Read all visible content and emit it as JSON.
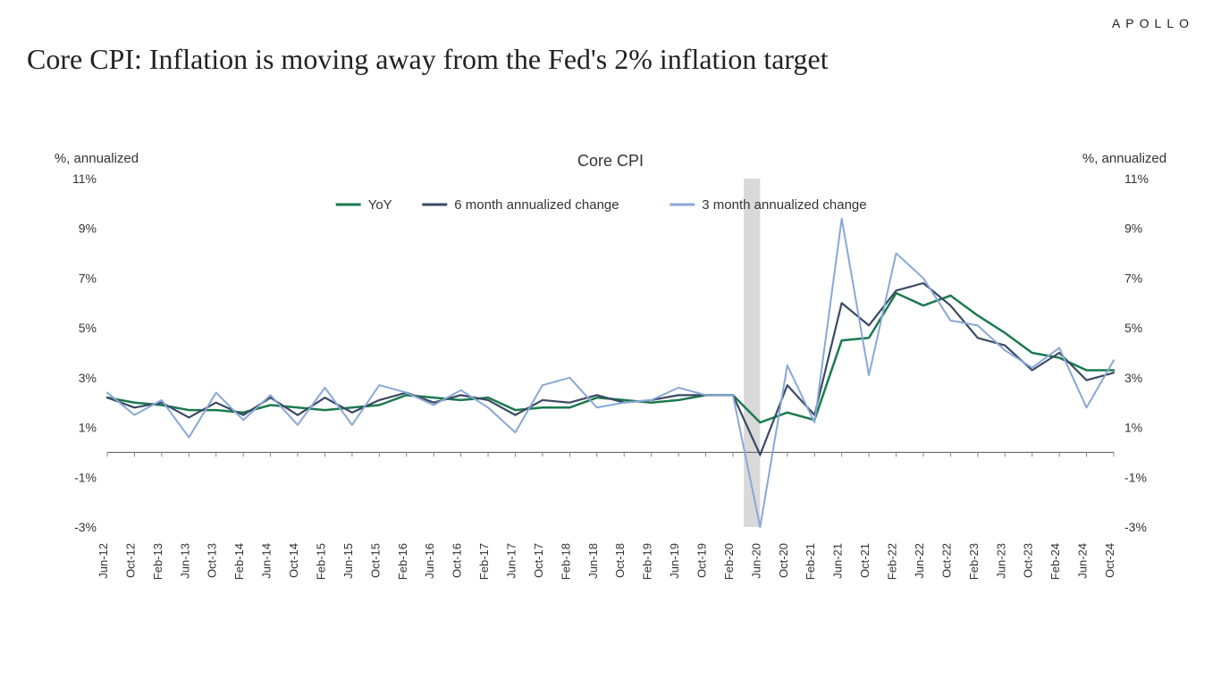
{
  "brand": "APOLLO",
  "title": "Core CPI: Inflation is moving away from the Fed's 2% inflation target",
  "chart": {
    "type": "line",
    "subtitle": "Core CPI",
    "y_axis_label": "%, annualized",
    "y_axis_label_left": "%, annualized",
    "y_axis_label_right": "%, annualized",
    "ylim": [
      -3,
      11
    ],
    "ytick_step": 2,
    "yticks": [
      -3,
      -1,
      1,
      3,
      5,
      7,
      9,
      11
    ],
    "ytick_labels": [
      "-3%",
      "-1%",
      "1%",
      "3%",
      "5%",
      "7%",
      "9%",
      "11%"
    ],
    "x_labels": [
      "Jun-12",
      "Oct-12",
      "Feb-13",
      "Jun-13",
      "Oct-13",
      "Feb-14",
      "Jun-14",
      "Oct-14",
      "Feb-15",
      "Jun-15",
      "Oct-15",
      "Feb-16",
      "Jun-16",
      "Oct-16",
      "Feb-17",
      "Jun-17",
      "Oct-17",
      "Feb-18",
      "Jun-18",
      "Oct-18",
      "Feb-19",
      "Jun-19",
      "Oct-19",
      "Feb-20",
      "Jun-20",
      "Oct-20",
      "Feb-21",
      "Jun-21",
      "Oct-21",
      "Feb-22",
      "Jun-22",
      "Oct-22",
      "Feb-23",
      "Jun-23",
      "Oct-23",
      "Feb-24",
      "Jun-24",
      "Oct-24"
    ],
    "recession_band": {
      "start_idx": 23.4,
      "end_idx": 24.0,
      "color": "#d9d9d9"
    },
    "legend": [
      {
        "label": "YoY",
        "color": "#1b7a4f"
      },
      {
        "label": "6 month annualized change",
        "color": "#3a4a63"
      },
      {
        "label": "3 month annualized change",
        "color": "#89a8d6"
      }
    ],
    "series": [
      {
        "name": "YoY",
        "color": "#1b7a4f",
        "width": 2.5,
        "values": [
          2.2,
          2.0,
          1.9,
          1.7,
          1.7,
          1.6,
          1.9,
          1.8,
          1.7,
          1.8,
          1.9,
          2.3,
          2.2,
          2.1,
          2.2,
          1.7,
          1.8,
          1.8,
          2.2,
          2.1,
          2.0,
          2.1,
          2.3,
          2.3,
          1.2,
          1.6,
          1.3,
          4.5,
          4.6,
          6.4,
          5.9,
          6.3,
          5.5,
          4.8,
          4.0,
          3.8,
          3.3,
          3.3
        ]
      },
      {
        "name": "6 month annualized change",
        "color": "#3a4a63",
        "width": 2.2,
        "values": [
          2.2,
          1.8,
          2.0,
          1.4,
          2.0,
          1.5,
          2.2,
          1.5,
          2.2,
          1.6,
          2.1,
          2.4,
          2.0,
          2.3,
          2.1,
          1.5,
          2.1,
          2.0,
          2.3,
          2.0,
          2.1,
          2.3,
          2.3,
          2.3,
          -0.1,
          2.7,
          1.5,
          6.0,
          5.1,
          6.5,
          6.8,
          5.9,
          4.6,
          4.3,
          3.3,
          4.0,
          2.9,
          3.2
        ]
      },
      {
        "name": "3 month annualized change",
        "color": "#89a8d6",
        "width": 2.0,
        "values": [
          2.4,
          1.5,
          2.1,
          0.6,
          2.4,
          1.3,
          2.3,
          1.1,
          2.6,
          1.1,
          2.7,
          2.4,
          1.9,
          2.5,
          1.8,
          0.8,
          2.7,
          3.0,
          1.8,
          2.0,
          2.1,
          2.6,
          2.3,
          2.3,
          -3.0,
          3.5,
          1.2,
          9.4,
          3.1,
          8.0,
          7.0,
          5.3,
          5.1,
          4.1,
          3.4,
          4.2,
          1.8,
          3.7
        ]
      }
    ],
    "subtitle_fontsize": 18,
    "axis_label_fontsize": 15,
    "tick_fontsize": 14,
    "x_tick_fontsize": 13,
    "legend_fontsize": 15,
    "title_fontsize": 32,
    "colors": {
      "background": "#ffffff",
      "axis": "#555555",
      "tick": "#888888",
      "text": "#333333"
    }
  }
}
